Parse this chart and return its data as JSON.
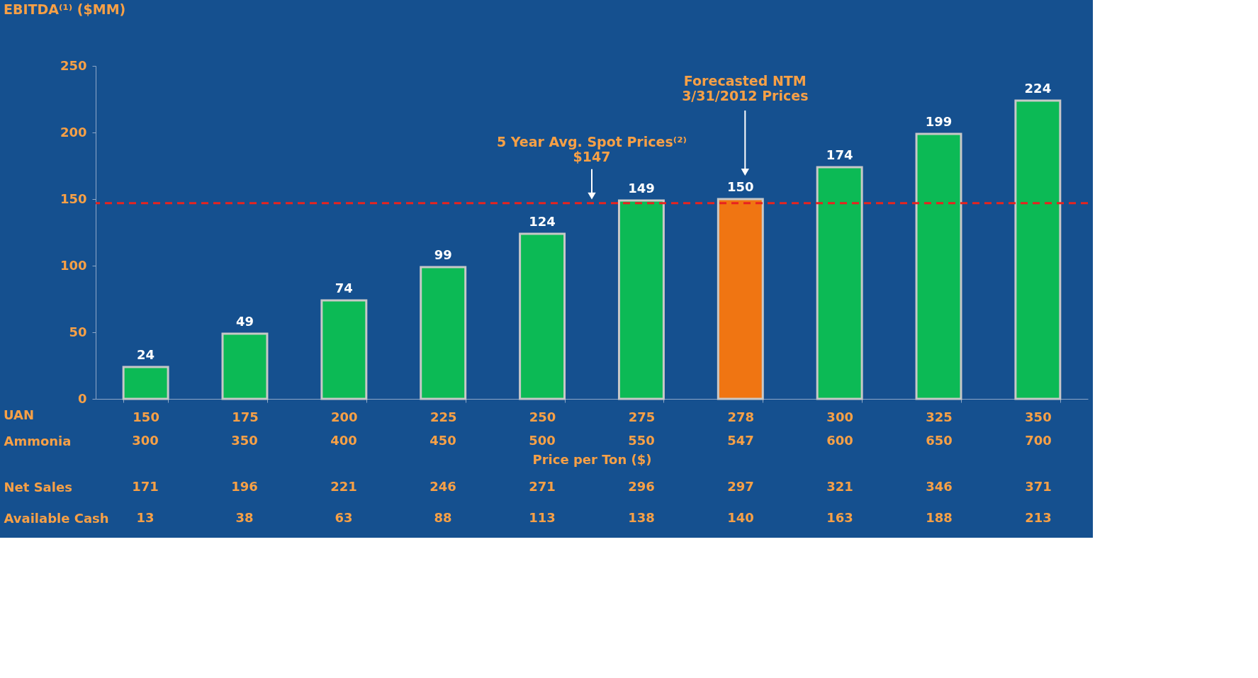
{
  "chart_data": {
    "type": "bar",
    "title": "EBITDA⁽¹⁾ ($MM)",
    "xlabel": "Price per Ton ($)",
    "categories": [
      "150",
      "175",
      "200",
      "225",
      "250",
      "275",
      "278",
      "300",
      "325",
      "350"
    ],
    "values": [
      24,
      49,
      74,
      99,
      124,
      149,
      150,
      174,
      199,
      224
    ],
    "colors": [
      "#0cba55",
      "#0cba55",
      "#0cba55",
      "#0cba55",
      "#0cba55",
      "#0cba55",
      "#f07512",
      "#0cba55",
      "#0cba55",
      "#0cba55"
    ],
    "ylim": [
      0,
      250
    ],
    "yticks": [
      0,
      50,
      100,
      150,
      200,
      250
    ],
    "data_labels": true,
    "ref_lines": [
      {
        "axis": "y",
        "value": 147,
        "label": "5 Year Avg. Spot Prices⁽²⁾\n$147",
        "color": "#e8231f",
        "line_style": "dashed"
      }
    ],
    "annotations": [
      "Forecasted NTM\n3/31/2012 Prices",
      "UAN",
      "Ammonia",
      "300",
      "350",
      "400",
      "450",
      "500",
      "550",
      "547",
      "600",
      "650",
      "700",
      "Net Sales",
      "171",
      "196",
      "221",
      "246",
      "271",
      "296",
      "297",
      "321",
      "346",
      "371",
      "Available Cash",
      "13",
      "38",
      "63",
      "88",
      "113",
      "138",
      "140",
      "163",
      "188",
      "213"
    ]
  }
}
